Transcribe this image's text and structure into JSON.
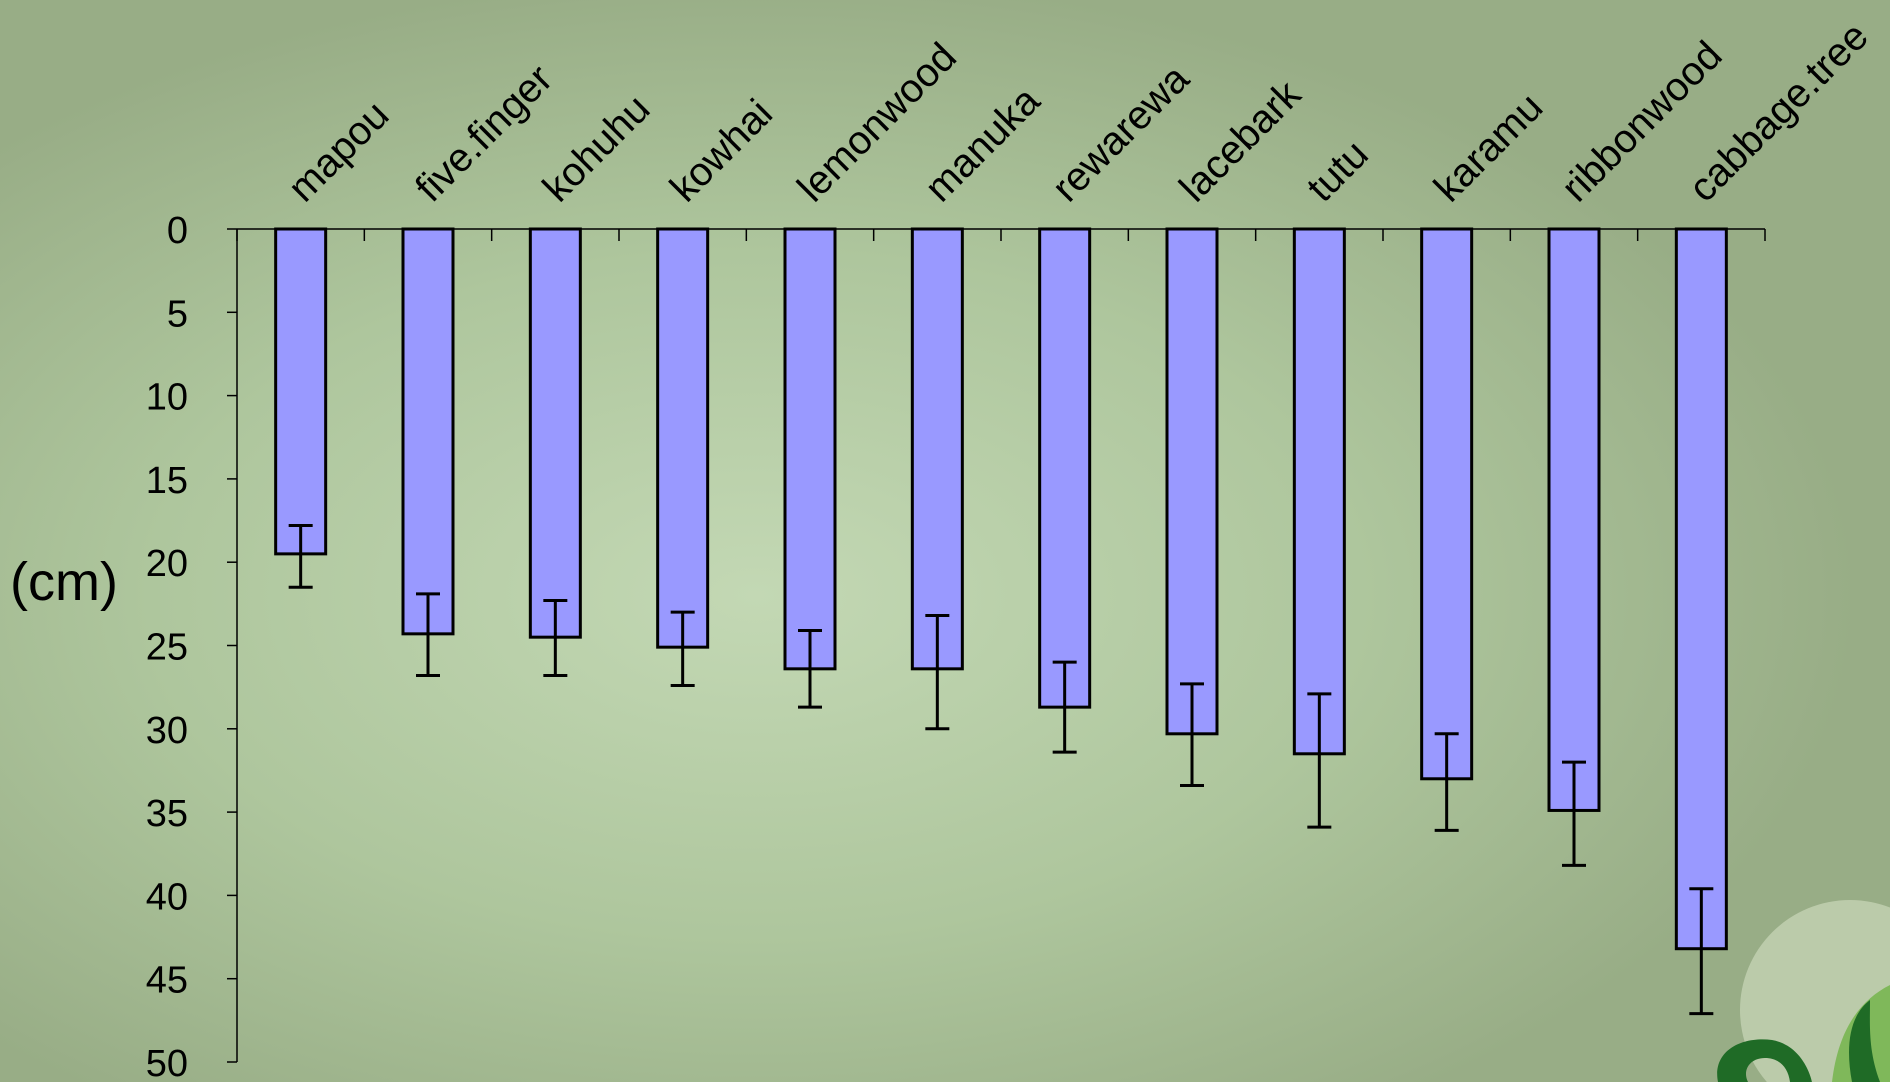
{
  "colors": {
    "bar_fill": "#9999ff",
    "bar_stroke": "#000000",
    "axis": "#000000",
    "logo_dark": "#1f6b26",
    "logo_light": "#7fb85a"
  },
  "decoration": {
    "logo": "fern-koru-icon"
  },
  "chart_data": {
    "type": "bar",
    "orientation": "vertical",
    "inverted_y": true,
    "title": "",
    "xlabel": "",
    "ylabel": "(cm)",
    "categories": [
      "mapou",
      "five.finger",
      "kohuhu",
      "kowhai",
      "lemonwood",
      "manuka",
      "rewarewa",
      "lacebark",
      "tutu",
      "karamu",
      "ribbonwood",
      "cabbage.tree"
    ],
    "values": [
      19.5,
      24.3,
      24.5,
      25.1,
      26.4,
      26.4,
      28.7,
      30.3,
      31.5,
      33,
      34.9,
      43.2
    ],
    "error_low": [
      17.8,
      21.9,
      22.3,
      23,
      24.1,
      23.2,
      26,
      27.3,
      27.9,
      30.3,
      32,
      39.6
    ],
    "error_high": [
      21.5,
      26.8,
      26.8,
      27.4,
      28.7,
      30,
      31.4,
      33.4,
      35.9,
      36.1,
      38.2,
      47.1
    ],
    "ylim": [
      0,
      50
    ],
    "yticks": [
      "0",
      "5",
      "10",
      "15",
      "20",
      "25",
      "30",
      "35",
      "40",
      "45",
      "50"
    ],
    "category_labels_position": "top",
    "grid": false,
    "legend": "none"
  }
}
